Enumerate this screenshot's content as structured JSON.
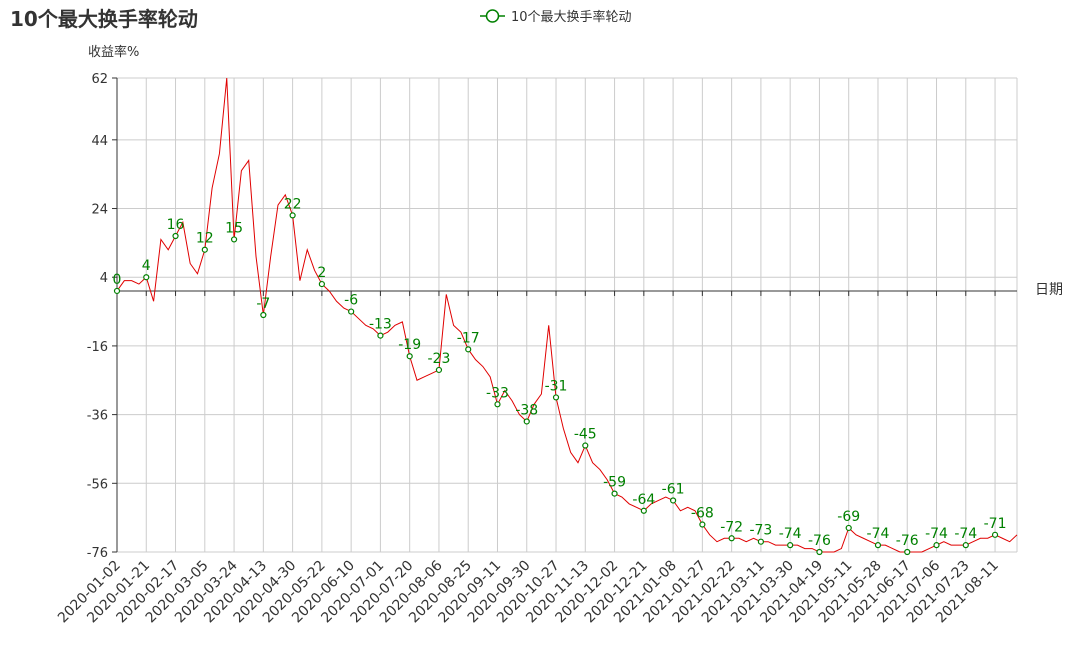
{
  "chart_data": {
    "type": "line",
    "title": "10个最大换手率轮动",
    "y_label": "收益率%",
    "x_label": "日期",
    "categories": [
      "2020-01-02",
      null,
      null,
      null,
      "2020-01-21",
      null,
      null,
      null,
      "2020-02-17",
      null,
      null,
      null,
      "2020-03-05",
      null,
      null,
      null,
      "2020-03-24",
      null,
      null,
      null,
      "2020-04-13",
      null,
      null,
      null,
      "2020-04-30",
      null,
      null,
      null,
      "2020-05-22",
      null,
      null,
      null,
      "2020-06-10",
      null,
      null,
      null,
      "2020-07-01",
      null,
      null,
      null,
      "2020-07-20",
      null,
      null,
      null,
      "2020-08-06",
      null,
      null,
      null,
      "2020-08-25",
      null,
      null,
      null,
      "2020-09-11",
      null,
      null,
      null,
      "2020-09-30",
      null,
      null,
      null,
      "2020-10-27",
      null,
      null,
      null,
      "2020-11-13",
      null,
      null,
      null,
      "2020-12-02",
      null,
      null,
      null,
      "2020-12-21",
      null,
      null,
      null,
      "2021-01-08",
      null,
      null,
      null,
      "2021-01-27",
      null,
      null,
      null,
      "2021-02-22",
      null,
      null,
      null,
      "2021-03-11",
      null,
      null,
      null,
      "2021-03-30",
      null,
      null,
      null,
      "2021-04-19",
      null,
      null,
      null,
      "2021-05-11",
      null,
      null,
      null,
      "2021-05-28",
      null,
      null,
      null,
      "2021-06-17",
      null,
      null,
      null,
      "2021-07-06",
      null,
      null,
      null,
      "2021-07-23",
      null,
      null,
      null,
      "2021-08-11",
      null,
      null,
      null
    ],
    "series": [
      {
        "name": "10个最大换手率轮动",
        "color": "#008000",
        "line_color": "#e00000",
        "values": [
          0,
          3,
          3,
          2,
          4,
          -3,
          15,
          12,
          16,
          20,
          8,
          5,
          12,
          30,
          40,
          62,
          15,
          35,
          38,
          10,
          -7,
          10,
          25,
          28,
          22,
          3,
          12,
          6,
          2,
          0,
          -3,
          -5,
          -6,
          -8,
          -10,
          -11,
          -13,
          -12,
          -10,
          -9,
          -19,
          -26,
          -25,
          -24,
          -23,
          -1,
          -10,
          -12,
          -17,
          -20,
          -22,
          -25,
          -33,
          -29,
          -32,
          -36,
          -38,
          -33,
          -30,
          -10,
          -31,
          -40,
          -47,
          -50,
          -45,
          -50,
          -52,
          -55,
          -59,
          -60,
          -62,
          -63,
          -64,
          -62,
          -61,
          -60,
          -61,
          -64,
          -63,
          -64,
          -68,
          -71,
          -73,
          -72,
          -72,
          -72,
          -73,
          -72,
          -73,
          -73,
          -74,
          -74,
          -74,
          -74,
          -75,
          -75,
          -76,
          -76,
          -76,
          -75,
          -69,
          -71,
          -72,
          -73,
          -74,
          -74,
          -75,
          -76,
          -76,
          -76,
          -76,
          -75,
          -74,
          -73,
          -74,
          -74,
          -74,
          -73,
          -72,
          -72,
          -71,
          -72,
          -73,
          -71
        ]
      }
    ],
    "ylim": [
      -76,
      62
    ],
    "yticks": [
      -76,
      -56,
      -36,
      -16,
      4,
      24,
      44,
      62
    ],
    "grid": true
  }
}
